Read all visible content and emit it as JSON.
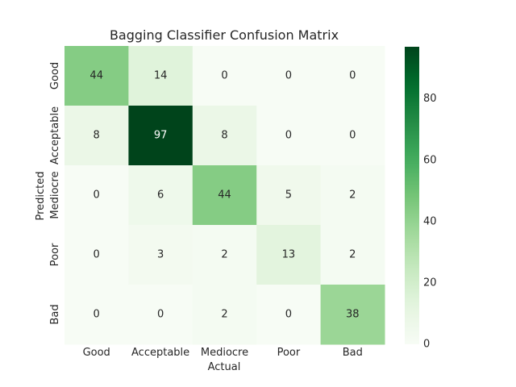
{
  "chart_data": {
    "type": "heatmap",
    "title": "Bagging Classifier Confusion Matrix",
    "xlabel": "Actual",
    "ylabel": "Predicted",
    "x_categories": [
      "Good",
      "Acceptable",
      "Mediocre",
      "Poor",
      "Bad"
    ],
    "y_categories": [
      "Good",
      "Acceptable",
      "Mediocre",
      "Poor",
      "Bad"
    ],
    "values": [
      [
        44,
        14,
        0,
        0,
        0
      ],
      [
        8,
        97,
        8,
        0,
        0
      ],
      [
        0,
        6,
        44,
        5,
        2
      ],
      [
        0,
        3,
        2,
        13,
        2
      ],
      [
        0,
        0,
        2,
        0,
        38
      ]
    ],
    "colormap": "Greens",
    "colorbar": {
      "min": 0,
      "max": 97,
      "ticks": [
        "0",
        "20",
        "40",
        "60",
        "80"
      ]
    },
    "grid": false
  }
}
